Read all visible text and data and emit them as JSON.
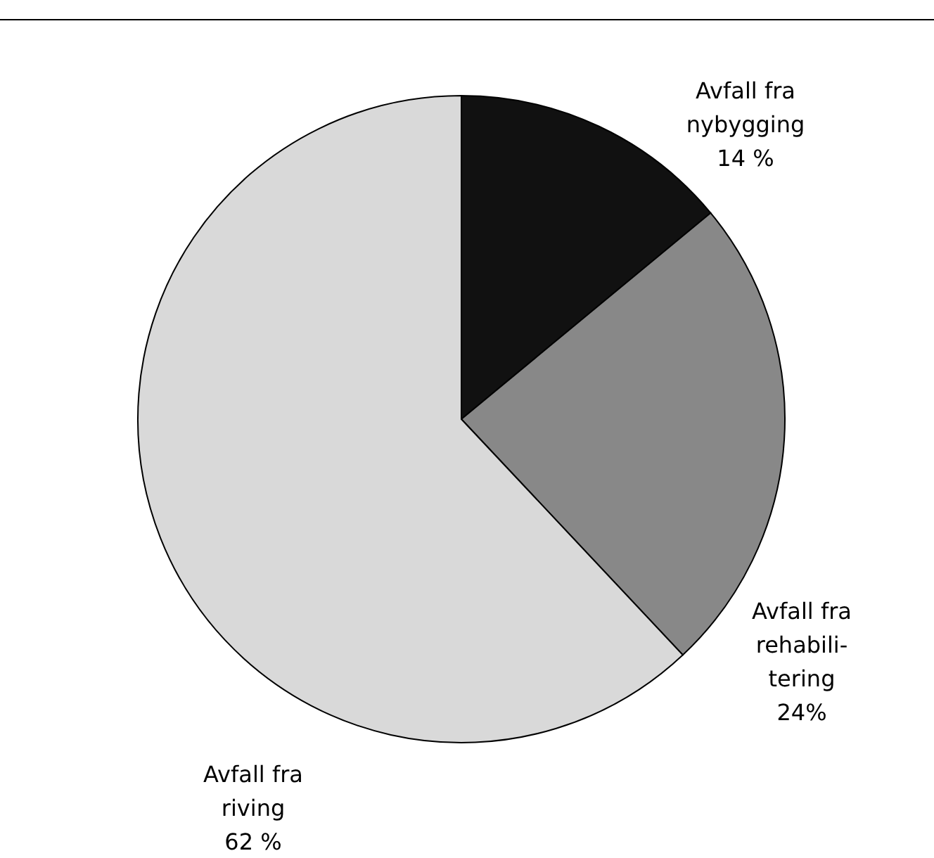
{
  "chart_data": {
    "type": "pie",
    "categories": [
      "Avfall fra\nnybygging",
      "Avfall fra\nrehabili-\ntering",
      "Avfall fra\nriving"
    ],
    "values": [
      14,
      24,
      62
    ],
    "value_labels": [
      "14 %",
      "24%",
      "62 %"
    ],
    "colors": [
      "#111111",
      "#888888",
      "#d9d9d9"
    ]
  }
}
